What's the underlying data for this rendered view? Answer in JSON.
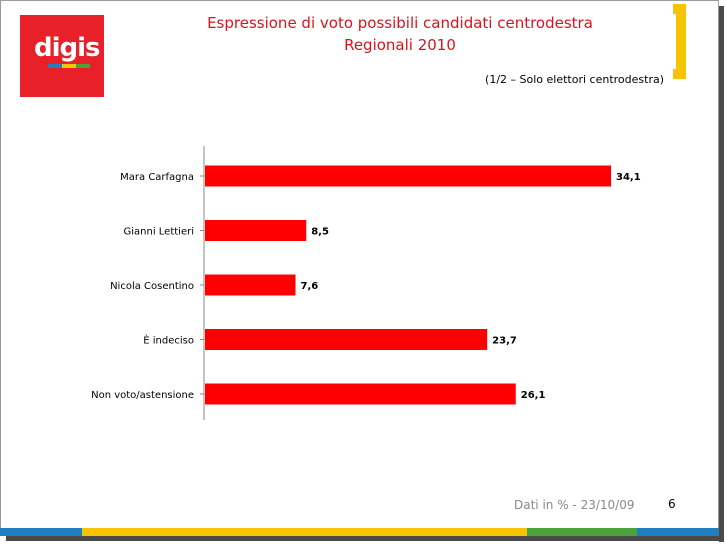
{
  "logo": {
    "text": "digis"
  },
  "header": {
    "title_line1": "Espressione di voto possibili candidati centrodestra",
    "title_line2": "Regionali 2010",
    "note": "(1/2 – Solo elettori centrodestra)"
  },
  "footer": {
    "source": "Dati in % - 23/10/09",
    "page_number": "6"
  },
  "colors": {
    "bar": "#ff0000",
    "title": "#d9141c",
    "accent_yellow": "#f6c400",
    "strip_blue": "#1f7fc0",
    "strip_green": "#4aa43a"
  },
  "chart_data": {
    "type": "bar",
    "orientation": "horizontal",
    "categories": [
      "Mara Carfagna",
      "Gianni Lettieri",
      "Nicola Cosentino",
      "È indeciso",
      "Non voto/astensione"
    ],
    "values": [
      34.1,
      8.5,
      7.6,
      23.7,
      26.1
    ],
    "value_labels": [
      "34,1",
      "8,5",
      "7,6",
      "23,7",
      "26,1"
    ],
    "title": "",
    "xlabel": "",
    "ylabel": "",
    "xlim": [
      0,
      34.1
    ],
    "grid": false
  }
}
